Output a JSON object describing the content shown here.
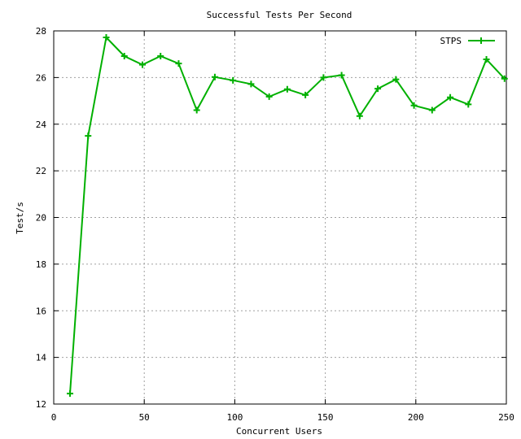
{
  "chart_data": {
    "type": "line",
    "title": "Successful Tests Per Second",
    "xlabel": "Concurrent Users",
    "ylabel": "Test/s",
    "xlim": [
      0,
      250
    ],
    "ylim": [
      12,
      28
    ],
    "xticks": [
      0,
      50,
      100,
      150,
      200,
      250
    ],
    "yticks": [
      12,
      14,
      16,
      18,
      20,
      22,
      24,
      26,
      28
    ],
    "grid": true,
    "legend_position": "top-right",
    "series": [
      {
        "name": "STPS",
        "color": "#00b000",
        "marker": "plus",
        "x": [
          9,
          19,
          29,
          39,
          49,
          59,
          69,
          79,
          89,
          99,
          109,
          119,
          129,
          139,
          149,
          159,
          169,
          179,
          189,
          199,
          209,
          219,
          229,
          239,
          249
        ],
        "y": [
          12.45,
          23.5,
          27.72,
          26.92,
          26.55,
          26.92,
          26.6,
          24.6,
          26.02,
          25.88,
          25.72,
          25.18,
          25.5,
          25.25,
          26.0,
          26.1,
          24.35,
          25.52,
          25.92,
          24.8,
          24.6,
          25.15,
          24.85,
          26.78,
          25.95
        ]
      }
    ]
  }
}
